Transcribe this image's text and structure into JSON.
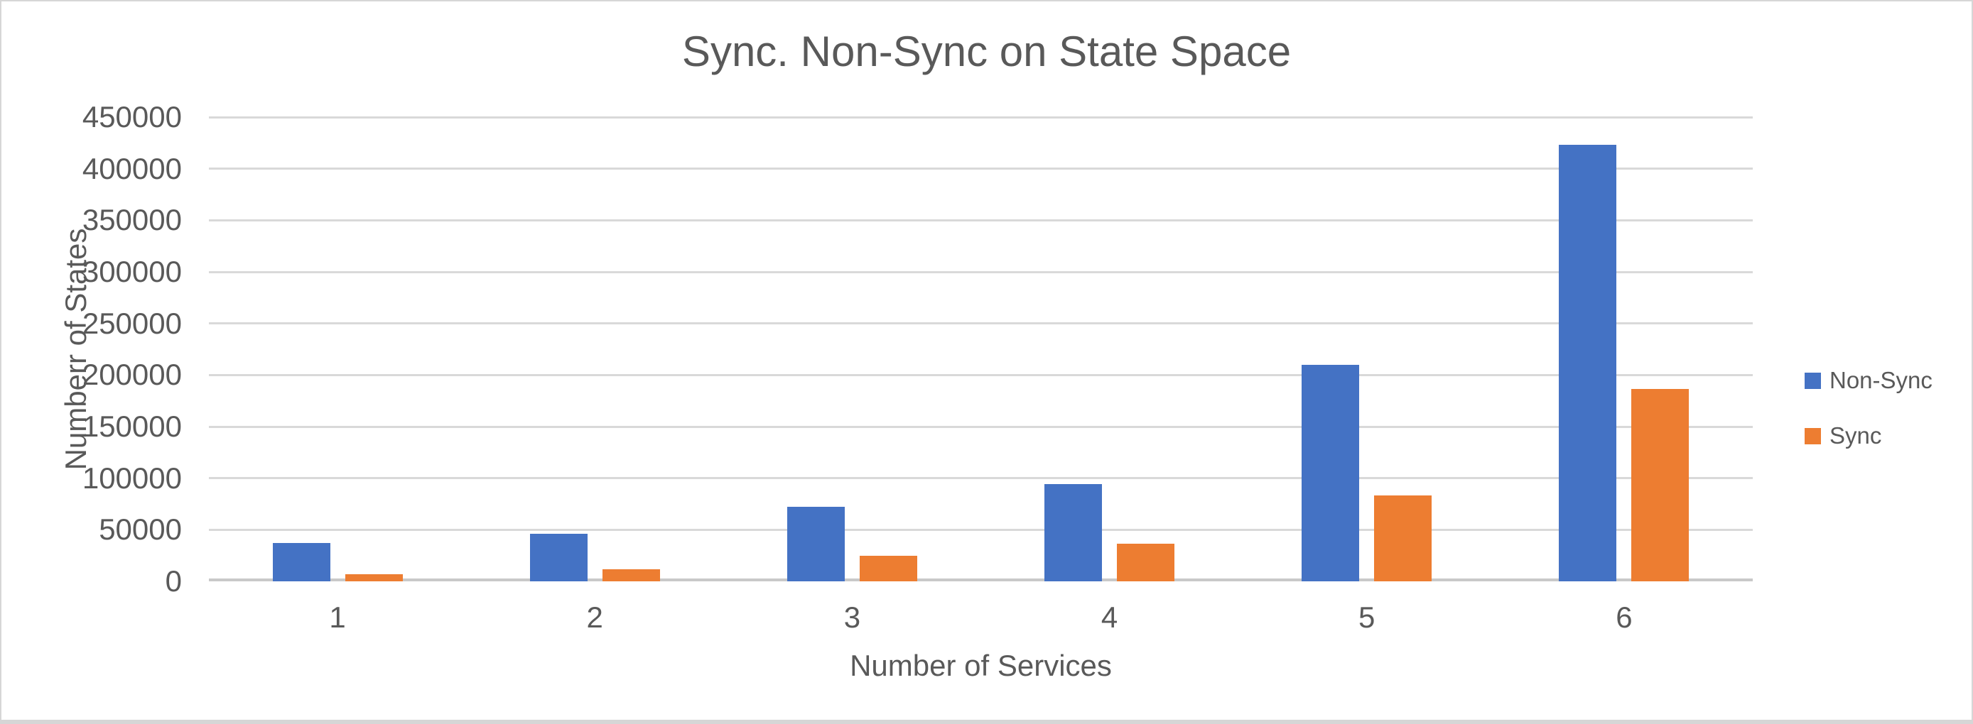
{
  "chart_data": {
    "type": "bar",
    "title": "Sync. Non-Sync on State Space",
    "xlabel": "Number of Services",
    "ylabel": "Numberr of States",
    "categories": [
      "1",
      "2",
      "3",
      "4",
      "5",
      "6"
    ],
    "series": [
      {
        "name": "Non-Sync",
        "color": "#4472C4",
        "values": [
          37000,
          46000,
          72000,
          94000,
          210000,
          423000
        ]
      },
      {
        "name": "Sync",
        "color": "#ED7D31",
        "values": [
          7000,
          12000,
          24500,
          36500,
          83500,
          186500
        ]
      }
    ],
    "ylim": [
      0,
      450000
    ],
    "ytick_step": 50000,
    "yticks": [
      "0",
      "50000",
      "100000",
      "150000",
      "200000",
      "250000",
      "300000",
      "350000",
      "400000",
      "450000"
    ],
    "grid": "horizontal",
    "legend_position": "right",
    "colors": {
      "text": "#595959",
      "gridline": "#D9D9D9",
      "zero_axis": "#C9C9C9",
      "background": "#FFFFFF",
      "frame_border": "#D6D6D6"
    }
  }
}
